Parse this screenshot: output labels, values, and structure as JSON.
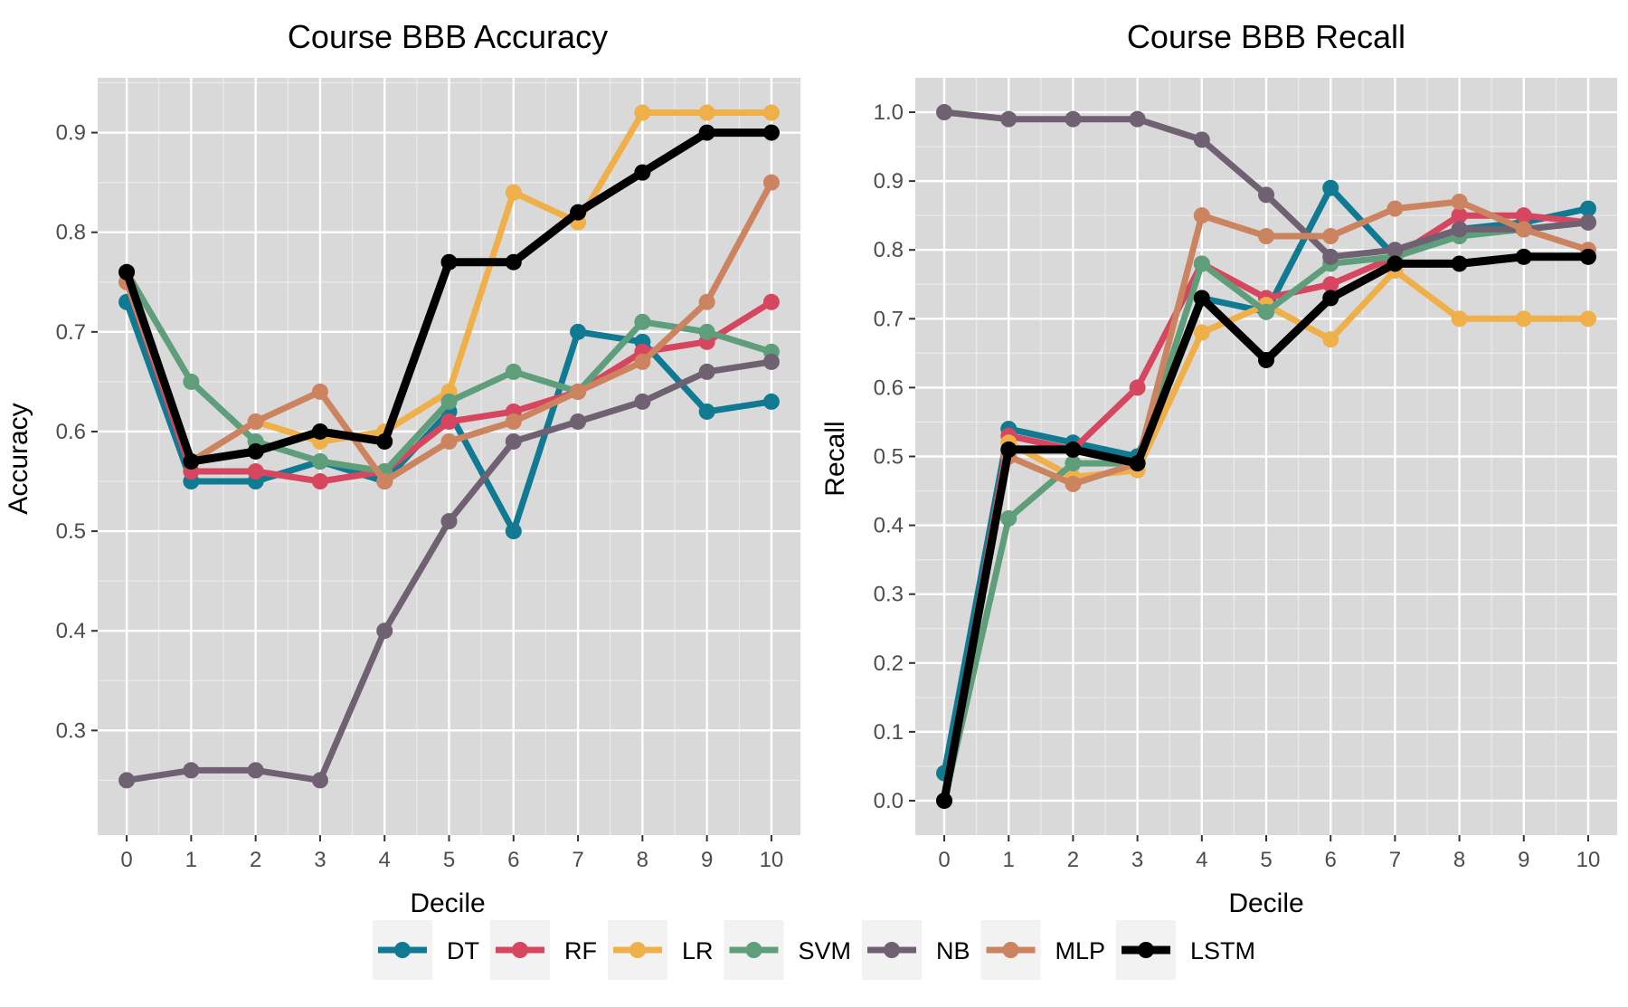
{
  "chart_data": [
    {
      "type": "line",
      "title": "Course BBB Accuracy",
      "xlabel": "Decile",
      "ylabel": "Accuracy",
      "x": [
        0,
        1,
        2,
        3,
        4,
        5,
        6,
        7,
        8,
        9,
        10
      ],
      "xlim": [
        -0.45,
        10.45
      ],
      "ylim": [
        0.195,
        0.955
      ],
      "xticks": [
        0,
        1,
        2,
        3,
        4,
        5,
        6,
        7,
        8,
        9,
        10
      ],
      "yticks": [
        0.3,
        0.4,
        0.5,
        0.6,
        0.7,
        0.8,
        0.9
      ],
      "ytick_labels": [
        "0.3",
        "0.4",
        "0.5",
        "0.6",
        "0.7",
        "0.8",
        "0.9"
      ],
      "grid": true,
      "series": [
        {
          "name": "DT",
          "color": "#0f7a91",
          "values": [
            0.73,
            0.55,
            0.55,
            0.57,
            0.55,
            0.62,
            0.5,
            0.7,
            0.69,
            0.62,
            0.63
          ]
        },
        {
          "name": "RF",
          "color": "#d6475f",
          "values": [
            0.75,
            0.56,
            0.56,
            0.55,
            0.56,
            0.61,
            0.62,
            0.64,
            0.68,
            0.69,
            0.73
          ]
        },
        {
          "name": "LR",
          "color": "#efb04a",
          "values": [
            0.75,
            0.57,
            0.61,
            0.59,
            0.6,
            0.64,
            0.84,
            0.81,
            0.92,
            0.92,
            0.92
          ]
        },
        {
          "name": "SVM",
          "color": "#5e9e7a",
          "values": [
            0.76,
            0.65,
            0.59,
            0.57,
            0.56,
            0.63,
            0.66,
            0.64,
            0.71,
            0.7,
            0.68
          ]
        },
        {
          "name": "NB",
          "color": "#6f6072",
          "values": [
            0.25,
            0.26,
            0.26,
            0.25,
            0.4,
            0.51,
            0.59,
            0.61,
            0.63,
            0.66,
            0.67
          ]
        },
        {
          "name": "MLP",
          "color": "#cc8360",
          "values": [
            0.75,
            0.57,
            0.61,
            0.64,
            0.55,
            0.59,
            0.61,
            0.64,
            0.67,
            0.73,
            0.85
          ]
        },
        {
          "name": "LSTM",
          "color": "#000000",
          "values": [
            0.76,
            0.57,
            0.58,
            0.6,
            0.59,
            0.77,
            0.77,
            0.82,
            0.86,
            0.9,
            0.9
          ]
        }
      ]
    },
    {
      "type": "line",
      "title": "Course BBB Recall",
      "xlabel": "Decile",
      "ylabel": "Recall",
      "x": [
        0,
        1,
        2,
        3,
        4,
        5,
        6,
        7,
        8,
        9,
        10
      ],
      "xlim": [
        -0.45,
        10.45
      ],
      "ylim": [
        -0.05,
        1.05
      ],
      "xticks": [
        0,
        1,
        2,
        3,
        4,
        5,
        6,
        7,
        8,
        9,
        10
      ],
      "yticks": [
        0.0,
        0.1,
        0.2,
        0.3,
        0.4,
        0.5,
        0.6,
        0.7,
        0.8,
        0.9,
        1.0
      ],
      "ytick_labels": [
        "0.0",
        "0.1",
        "0.2",
        "0.3",
        "0.4",
        "0.5",
        "0.6",
        "0.7",
        "0.8",
        "0.9",
        "1.0"
      ],
      "grid": true,
      "series": [
        {
          "name": "DT",
          "color": "#0f7a91",
          "values": [
            0.04,
            0.54,
            0.52,
            0.5,
            0.73,
            0.71,
            0.89,
            0.79,
            0.83,
            0.84,
            0.86
          ]
        },
        {
          "name": "RF",
          "color": "#d6475f",
          "values": [
            0.0,
            0.53,
            0.51,
            0.6,
            0.78,
            0.73,
            0.75,
            0.79,
            0.85,
            0.85,
            0.84
          ]
        },
        {
          "name": "LR",
          "color": "#efb04a",
          "values": [
            0.0,
            0.52,
            0.47,
            0.48,
            0.68,
            0.72,
            0.67,
            0.77,
            0.7,
            0.7,
            0.7
          ]
        },
        {
          "name": "SVM",
          "color": "#5e9e7a",
          "values": [
            0.0,
            0.41,
            0.49,
            0.49,
            0.78,
            0.71,
            0.78,
            0.79,
            0.82,
            0.83,
            0.84
          ]
        },
        {
          "name": "NB",
          "color": "#6f6072",
          "values": [
            1.0,
            0.99,
            0.99,
            0.99,
            0.96,
            0.88,
            0.79,
            0.8,
            0.83,
            0.83,
            0.84
          ]
        },
        {
          "name": "MLP",
          "color": "#cc8360",
          "values": [
            0.0,
            0.5,
            0.46,
            0.49,
            0.85,
            0.82,
            0.82,
            0.86,
            0.87,
            0.83,
            0.8
          ]
        },
        {
          "name": "LSTM",
          "color": "#000000",
          "values": [
            0.0,
            0.51,
            0.51,
            0.49,
            0.73,
            0.64,
            0.73,
            0.78,
            0.78,
            0.79,
            0.79
          ]
        }
      ]
    }
  ],
  "legend": {
    "position": "bottom",
    "items": [
      {
        "label": "DT",
        "color": "#0f7a91"
      },
      {
        "label": "RF",
        "color": "#d6475f"
      },
      {
        "label": "LR",
        "color": "#efb04a"
      },
      {
        "label": "SVM",
        "color": "#5e9e7a"
      },
      {
        "label": "NB",
        "color": "#6f6072"
      },
      {
        "label": "MLP",
        "color": "#cc8360"
      },
      {
        "label": "LSTM",
        "color": "#000000"
      }
    ]
  }
}
